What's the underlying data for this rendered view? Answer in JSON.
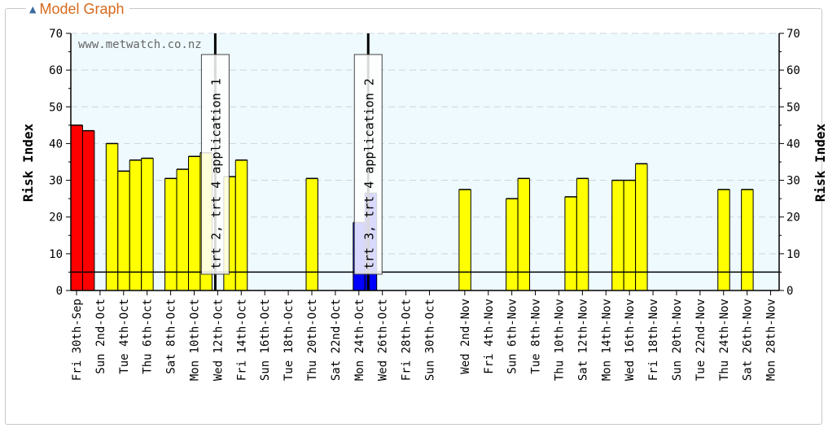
{
  "panel": {
    "title": "Model Graph",
    "collapse_icon": "collapse-caret-icon"
  },
  "chart_data": {
    "type": "bar",
    "watermark": "www.metwatch.co.nz",
    "ylabel_left": "Risk Index",
    "ylabel_right": "Risk Index",
    "ylim": [
      0,
      70
    ],
    "y_ticks": [
      0,
      10,
      20,
      30,
      40,
      50,
      60,
      70
    ],
    "threshold": 5,
    "dates_start": "2016-09-30",
    "x_tick_labels": [
      "Fri 30th-Sep",
      "Sun 2nd-Oct",
      "Tue 4th-Oct",
      "Thu 6th-Oct",
      "Sat 8th-Oct",
      "Mon 10th-Oct",
      "Wed 12th-Oct",
      "Fri 14th-Oct",
      "Sun 16th-Oct",
      "Tue 18th-Oct",
      "Thu 20th-Oct",
      "Sat 22nd-Oct",
      "Mon 24th-Oct",
      "Wed 26th-Oct",
      "Fri 28th-Oct",
      "Sun 30th-Oct",
      "Wed 2nd-Nov",
      "Fri 4th-Nov",
      "Sun 6th-Nov",
      "Tue 8th-Nov",
      "Thu 10th-Nov",
      "Sat 12th-Nov",
      "Mon 14th-Nov",
      "Wed 16th-Nov",
      "Fri 18th-Nov",
      "Sun 20th-Nov",
      "Tue 22nd-Nov",
      "Thu 24th-Nov",
      "Sat 26th-Nov",
      "Mon 28th-Nov"
    ],
    "x_tick_dates": [
      "2016-09-30",
      "2016-10-02",
      "2016-10-04",
      "2016-10-06",
      "2016-10-08",
      "2016-10-10",
      "2016-10-12",
      "2016-10-14",
      "2016-10-16",
      "2016-10-18",
      "2016-10-20",
      "2016-10-22",
      "2016-10-24",
      "2016-10-26",
      "2016-10-28",
      "2016-10-30",
      "2016-11-02",
      "2016-11-04",
      "2016-11-06",
      "2016-11-08",
      "2016-11-10",
      "2016-11-12",
      "2016-11-14",
      "2016-11-16",
      "2016-11-18",
      "2016-11-20",
      "2016-11-22",
      "2016-11-24",
      "2016-11-26",
      "2016-11-28"
    ],
    "bars": [
      {
        "date": "2016-09-30",
        "value": 45,
        "color": "#ff0000"
      },
      {
        "date": "2016-10-01",
        "value": 43.5,
        "color": "#ff0000"
      },
      {
        "date": "2016-10-03",
        "value": 40,
        "color": "#ffff00"
      },
      {
        "date": "2016-10-04",
        "value": 32.5,
        "color": "#ffff00"
      },
      {
        "date": "2016-10-05",
        "value": 35.5,
        "color": "#ffff00"
      },
      {
        "date": "2016-10-06",
        "value": 36,
        "color": "#ffff00"
      },
      {
        "date": "2016-10-08",
        "value": 30.5,
        "color": "#ffff00"
      },
      {
        "date": "2016-10-09",
        "value": 33,
        "color": "#ffff00"
      },
      {
        "date": "2016-10-10",
        "value": 36.5,
        "color": "#ffff00"
      },
      {
        "date": "2016-10-11",
        "value": 37.5,
        "color": "#ffff00"
      },
      {
        "date": "2016-10-13",
        "value": 31,
        "color": "#ffff00"
      },
      {
        "date": "2016-10-14",
        "value": 35.5,
        "color": "#ffff00"
      },
      {
        "date": "2016-10-20",
        "value": 30.5,
        "color": "#ffff00"
      },
      {
        "date": "2016-10-24",
        "value": 18.5,
        "color": "#0000ff"
      },
      {
        "date": "2016-10-25",
        "value": 26.5,
        "color": "#0000ff"
      },
      {
        "date": "2016-11-02",
        "value": 27.5,
        "color": "#ffff00"
      },
      {
        "date": "2016-11-06",
        "value": 25,
        "color": "#ffff00"
      },
      {
        "date": "2016-11-07",
        "value": 30.5,
        "color": "#ffff00"
      },
      {
        "date": "2016-11-11",
        "value": 25.5,
        "color": "#ffff00"
      },
      {
        "date": "2016-11-12",
        "value": 30.5,
        "color": "#ffff00"
      },
      {
        "date": "2016-11-15",
        "value": 30,
        "color": "#ffff00"
      },
      {
        "date": "2016-11-16",
        "value": 30,
        "color": "#ffff00"
      },
      {
        "date": "2016-11-17",
        "value": 34.5,
        "color": "#ffff00"
      },
      {
        "date": "2016-11-24",
        "value": 27.5,
        "color": "#ffff00"
      },
      {
        "date": "2016-11-26",
        "value": 27.5,
        "color": "#ffff00"
      }
    ],
    "events": [
      {
        "date": "2016-10-12",
        "label": "trt 2, trt 4 application 1"
      },
      {
        "date": "2016-10-25",
        "label": "trt 3, trt 4 application 2"
      }
    ],
    "grid": true,
    "background": "#eefafe"
  }
}
